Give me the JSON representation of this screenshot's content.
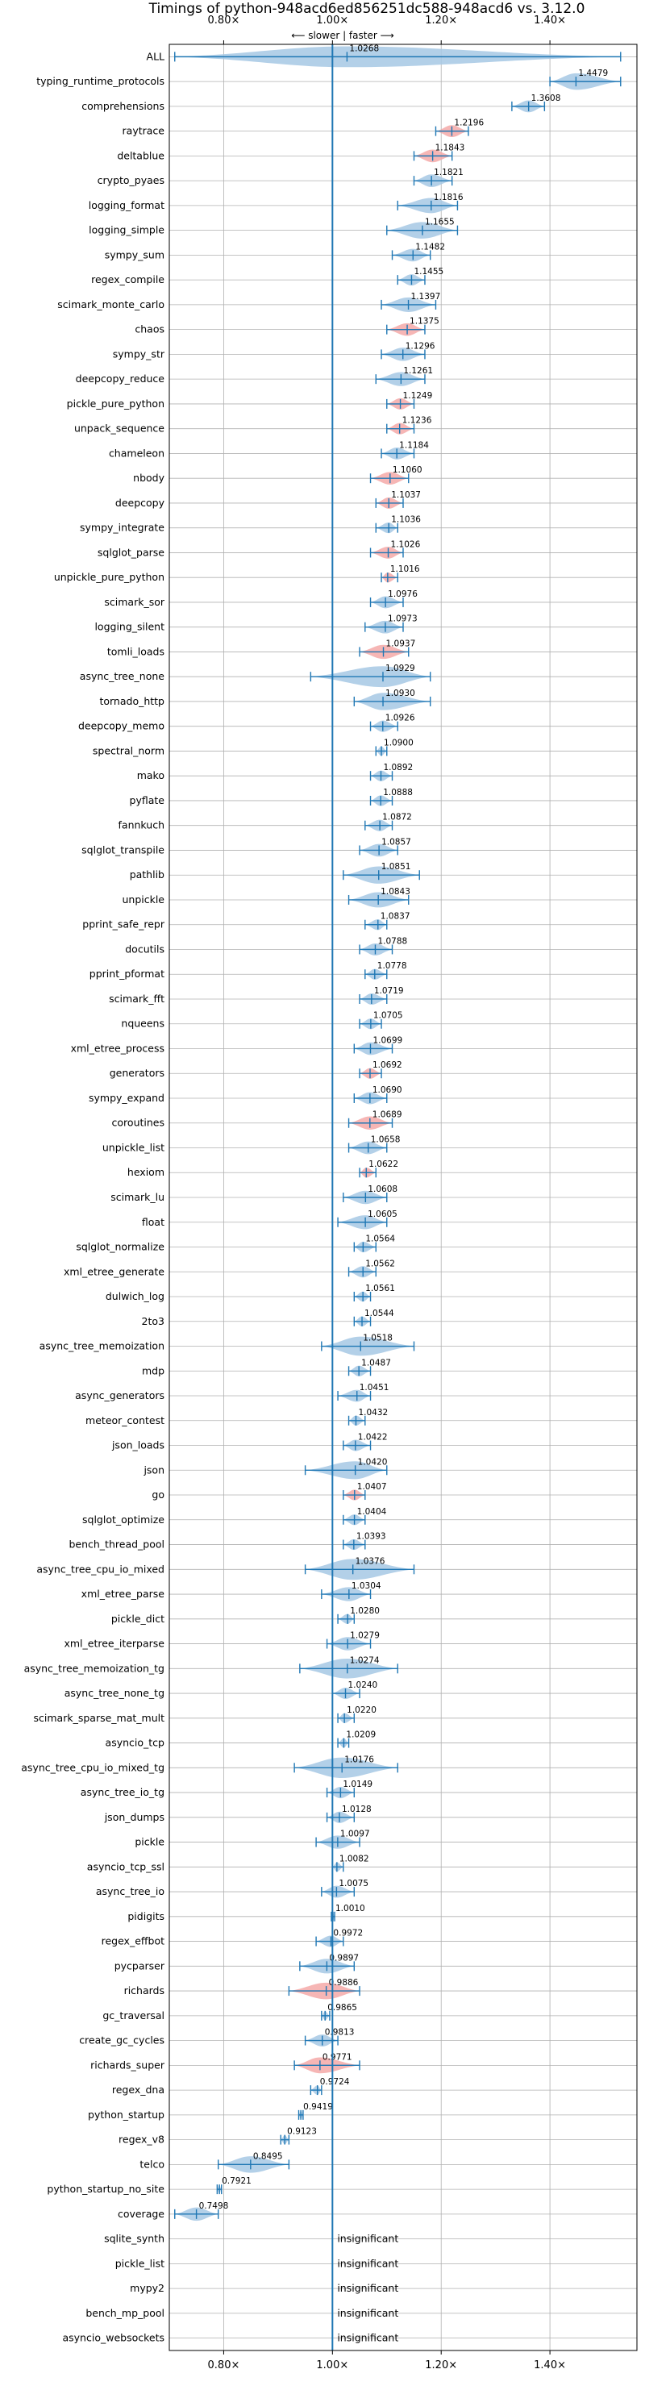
{
  "chart_data": {
    "type": "violin",
    "title": "Timings of python-948acd6ed856251dc588-948acd6 vs. 3.12.0",
    "direction_label": "⟵ slower | faster ⟶",
    "xlim": [
      0.7,
      1.56
    ],
    "xticks": [
      0.8,
      1.0,
      1.2,
      1.4
    ],
    "xtick_labels": [
      "0.80×",
      "1.00×",
      "1.20×",
      "1.40×"
    ],
    "reference_line": 1.0,
    "insignificant_label": "insignificant",
    "benchmarks": [
      {
        "name": "ALL",
        "value": 1.0268,
        "label": "1.0268",
        "min": 0.71,
        "max": 1.53,
        "highlight": false,
        "insignificant": false
      },
      {
        "name": "typing_runtime_protocols",
        "value": 1.4479,
        "label": "1.4479",
        "min": 1.4,
        "max": 1.53,
        "highlight": false,
        "insignificant": false
      },
      {
        "name": "comprehensions",
        "value": 1.3608,
        "label": "1.3608",
        "min": 1.33,
        "max": 1.39,
        "highlight": false,
        "insignificant": false
      },
      {
        "name": "raytrace",
        "value": 1.2196,
        "label": "1.2196",
        "min": 1.19,
        "max": 1.25,
        "highlight": true,
        "insignificant": false
      },
      {
        "name": "deltablue",
        "value": 1.1843,
        "label": "1.1843",
        "min": 1.15,
        "max": 1.22,
        "highlight": true,
        "insignificant": false
      },
      {
        "name": "crypto_pyaes",
        "value": 1.1821,
        "label": "1.1821",
        "min": 1.15,
        "max": 1.22,
        "highlight": false,
        "insignificant": false
      },
      {
        "name": "logging_format",
        "value": 1.1816,
        "label": "1.1816",
        "min": 1.12,
        "max": 1.23,
        "highlight": false,
        "insignificant": false
      },
      {
        "name": "logging_simple",
        "value": 1.1655,
        "label": "1.1655",
        "min": 1.1,
        "max": 1.23,
        "highlight": false,
        "insignificant": false
      },
      {
        "name": "sympy_sum",
        "value": 1.1482,
        "label": "1.1482",
        "min": 1.11,
        "max": 1.18,
        "highlight": false,
        "insignificant": false
      },
      {
        "name": "regex_compile",
        "value": 1.1455,
        "label": "1.1455",
        "min": 1.12,
        "max": 1.17,
        "highlight": false,
        "insignificant": false
      },
      {
        "name": "scimark_monte_carlo",
        "value": 1.1397,
        "label": "1.1397",
        "min": 1.09,
        "max": 1.19,
        "highlight": false,
        "insignificant": false
      },
      {
        "name": "chaos",
        "value": 1.1375,
        "label": "1.1375",
        "min": 1.1,
        "max": 1.17,
        "highlight": true,
        "insignificant": false
      },
      {
        "name": "sympy_str",
        "value": 1.1296,
        "label": "1.1296",
        "min": 1.09,
        "max": 1.17,
        "highlight": false,
        "insignificant": false
      },
      {
        "name": "deepcopy_reduce",
        "value": 1.1261,
        "label": "1.1261",
        "min": 1.08,
        "max": 1.17,
        "highlight": false,
        "insignificant": false
      },
      {
        "name": "pickle_pure_python",
        "value": 1.1249,
        "label": "1.1249",
        "min": 1.1,
        "max": 1.15,
        "highlight": true,
        "insignificant": false
      },
      {
        "name": "unpack_sequence",
        "value": 1.1236,
        "label": "1.1236",
        "min": 1.1,
        "max": 1.15,
        "highlight": true,
        "insignificant": false
      },
      {
        "name": "chameleon",
        "value": 1.1184,
        "label": "1.1184",
        "min": 1.09,
        "max": 1.15,
        "highlight": false,
        "insignificant": false
      },
      {
        "name": "nbody",
        "value": 1.106,
        "label": "1.1060",
        "min": 1.07,
        "max": 1.14,
        "highlight": true,
        "insignificant": false
      },
      {
        "name": "deepcopy",
        "value": 1.1037,
        "label": "1.1037",
        "min": 1.08,
        "max": 1.13,
        "highlight": true,
        "insignificant": false
      },
      {
        "name": "sympy_integrate",
        "value": 1.1036,
        "label": "1.1036",
        "min": 1.08,
        "max": 1.12,
        "highlight": false,
        "insignificant": false
      },
      {
        "name": "sqlglot_parse",
        "value": 1.1026,
        "label": "1.1026",
        "min": 1.07,
        "max": 1.13,
        "highlight": true,
        "insignificant": false
      },
      {
        "name": "unpickle_pure_python",
        "value": 1.1016,
        "label": "1.1016",
        "min": 1.09,
        "max": 1.12,
        "highlight": true,
        "insignificant": false
      },
      {
        "name": "scimark_sor",
        "value": 1.0976,
        "label": "1.0976",
        "min": 1.07,
        "max": 1.13,
        "highlight": false,
        "insignificant": false
      },
      {
        "name": "logging_silent",
        "value": 1.0973,
        "label": "1.0973",
        "min": 1.06,
        "max": 1.13,
        "highlight": false,
        "insignificant": false
      },
      {
        "name": "tomli_loads",
        "value": 1.0937,
        "label": "1.0937",
        "min": 1.05,
        "max": 1.14,
        "highlight": true,
        "insignificant": false
      },
      {
        "name": "async_tree_none",
        "value": 1.0929,
        "label": "1.0929",
        "min": 0.96,
        "max": 1.18,
        "highlight": false,
        "insignificant": false
      },
      {
        "name": "tornado_http",
        "value": 1.093,
        "label": "1.0930",
        "min": 1.04,
        "max": 1.18,
        "highlight": false,
        "insignificant": false
      },
      {
        "name": "deepcopy_memo",
        "value": 1.0926,
        "label": "1.0926",
        "min": 1.07,
        "max": 1.12,
        "highlight": false,
        "insignificant": false
      },
      {
        "name": "spectral_norm",
        "value": 1.09,
        "label": "1.0900",
        "min": 1.08,
        "max": 1.1,
        "highlight": false,
        "insignificant": false
      },
      {
        "name": "mako",
        "value": 1.0892,
        "label": "1.0892",
        "min": 1.07,
        "max": 1.11,
        "highlight": false,
        "insignificant": false
      },
      {
        "name": "pyflate",
        "value": 1.0888,
        "label": "1.0888",
        "min": 1.07,
        "max": 1.11,
        "highlight": false,
        "insignificant": false
      },
      {
        "name": "fannkuch",
        "value": 1.0872,
        "label": "1.0872",
        "min": 1.06,
        "max": 1.11,
        "highlight": false,
        "insignificant": false
      },
      {
        "name": "sqlglot_transpile",
        "value": 1.0857,
        "label": "1.0857",
        "min": 1.05,
        "max": 1.12,
        "highlight": false,
        "insignificant": false
      },
      {
        "name": "pathlib",
        "value": 1.0851,
        "label": "1.0851",
        "min": 1.02,
        "max": 1.16,
        "highlight": false,
        "insignificant": false
      },
      {
        "name": "unpickle",
        "value": 1.0843,
        "label": "1.0843",
        "min": 1.03,
        "max": 1.14,
        "highlight": false,
        "insignificant": false
      },
      {
        "name": "pprint_safe_repr",
        "value": 1.0837,
        "label": "1.0837",
        "min": 1.06,
        "max": 1.1,
        "highlight": false,
        "insignificant": false
      },
      {
        "name": "docutils",
        "value": 1.0788,
        "label": "1.0788",
        "min": 1.05,
        "max": 1.11,
        "highlight": false,
        "insignificant": false
      },
      {
        "name": "pprint_pformat",
        "value": 1.0778,
        "label": "1.0778",
        "min": 1.06,
        "max": 1.1,
        "highlight": false,
        "insignificant": false
      },
      {
        "name": "scimark_fft",
        "value": 1.0719,
        "label": "1.0719",
        "min": 1.05,
        "max": 1.1,
        "highlight": false,
        "insignificant": false
      },
      {
        "name": "nqueens",
        "value": 1.0705,
        "label": "1.0705",
        "min": 1.05,
        "max": 1.09,
        "highlight": false,
        "insignificant": false
      },
      {
        "name": "xml_etree_process",
        "value": 1.0699,
        "label": "1.0699",
        "min": 1.04,
        "max": 1.11,
        "highlight": false,
        "insignificant": false
      },
      {
        "name": "generators",
        "value": 1.0692,
        "label": "1.0692",
        "min": 1.05,
        "max": 1.09,
        "highlight": true,
        "insignificant": false
      },
      {
        "name": "sympy_expand",
        "value": 1.069,
        "label": "1.0690",
        "min": 1.04,
        "max": 1.1,
        "highlight": false,
        "insignificant": false
      },
      {
        "name": "coroutines",
        "value": 1.0689,
        "label": "1.0689",
        "min": 1.03,
        "max": 1.11,
        "highlight": true,
        "insignificant": false
      },
      {
        "name": "unpickle_list",
        "value": 1.0658,
        "label": "1.0658",
        "min": 1.03,
        "max": 1.1,
        "highlight": false,
        "insignificant": false
      },
      {
        "name": "hexiom",
        "value": 1.0622,
        "label": "1.0622",
        "min": 1.05,
        "max": 1.08,
        "highlight": true,
        "insignificant": false
      },
      {
        "name": "scimark_lu",
        "value": 1.0608,
        "label": "1.0608",
        "min": 1.02,
        "max": 1.1,
        "highlight": false,
        "insignificant": false
      },
      {
        "name": "float",
        "value": 1.0605,
        "label": "1.0605",
        "min": 1.01,
        "max": 1.1,
        "highlight": false,
        "insignificant": false
      },
      {
        "name": "sqlglot_normalize",
        "value": 1.0564,
        "label": "1.0564",
        "min": 1.04,
        "max": 1.08,
        "highlight": false,
        "insignificant": false
      },
      {
        "name": "xml_etree_generate",
        "value": 1.0562,
        "label": "1.0562",
        "min": 1.03,
        "max": 1.08,
        "highlight": false,
        "insignificant": false
      },
      {
        "name": "dulwich_log",
        "value": 1.0561,
        "label": "1.0561",
        "min": 1.04,
        "max": 1.07,
        "highlight": false,
        "insignificant": false
      },
      {
        "name": "2to3",
        "value": 1.0544,
        "label": "1.0544",
        "min": 1.04,
        "max": 1.07,
        "highlight": false,
        "insignificant": false
      },
      {
        "name": "async_tree_memoization",
        "value": 1.0518,
        "label": "1.0518",
        "min": 0.98,
        "max": 1.15,
        "highlight": false,
        "insignificant": false
      },
      {
        "name": "mdp",
        "value": 1.0487,
        "label": "1.0487",
        "min": 1.03,
        "max": 1.07,
        "highlight": false,
        "insignificant": false
      },
      {
        "name": "async_generators",
        "value": 1.0451,
        "label": "1.0451",
        "min": 1.01,
        "max": 1.07,
        "highlight": false,
        "insignificant": false
      },
      {
        "name": "meteor_contest",
        "value": 1.0432,
        "label": "1.0432",
        "min": 1.03,
        "max": 1.06,
        "highlight": false,
        "insignificant": false
      },
      {
        "name": "json_loads",
        "value": 1.0422,
        "label": "1.0422",
        "min": 1.02,
        "max": 1.07,
        "highlight": false,
        "insignificant": false
      },
      {
        "name": "json",
        "value": 1.042,
        "label": "1.0420",
        "min": 0.95,
        "max": 1.1,
        "highlight": false,
        "insignificant": false
      },
      {
        "name": "go",
        "value": 1.0407,
        "label": "1.0407",
        "min": 1.02,
        "max": 1.06,
        "highlight": true,
        "insignificant": false
      },
      {
        "name": "sqlglot_optimize",
        "value": 1.0404,
        "label": "1.0404",
        "min": 1.02,
        "max": 1.06,
        "highlight": false,
        "insignificant": false
      },
      {
        "name": "bench_thread_pool",
        "value": 1.0393,
        "label": "1.0393",
        "min": 1.02,
        "max": 1.06,
        "highlight": false,
        "insignificant": false
      },
      {
        "name": "async_tree_cpu_io_mixed",
        "value": 1.0376,
        "label": "1.0376",
        "min": 0.95,
        "max": 1.15,
        "highlight": false,
        "insignificant": false
      },
      {
        "name": "xml_etree_parse",
        "value": 1.0304,
        "label": "1.0304",
        "min": 0.98,
        "max": 1.07,
        "highlight": false,
        "insignificant": false
      },
      {
        "name": "pickle_dict",
        "value": 1.028,
        "label": "1.0280",
        "min": 1.01,
        "max": 1.04,
        "highlight": false,
        "insignificant": false
      },
      {
        "name": "xml_etree_iterparse",
        "value": 1.0279,
        "label": "1.0279",
        "min": 0.99,
        "max": 1.07,
        "highlight": false,
        "insignificant": false
      },
      {
        "name": "async_tree_memoization_tg",
        "value": 1.0274,
        "label": "1.0274",
        "min": 0.94,
        "max": 1.12,
        "highlight": false,
        "insignificant": false
      },
      {
        "name": "async_tree_none_tg",
        "value": 1.024,
        "label": "1.0240",
        "min": 1.0,
        "max": 1.05,
        "highlight": false,
        "insignificant": false
      },
      {
        "name": "scimark_sparse_mat_mult",
        "value": 1.022,
        "label": "1.0220",
        "min": 1.01,
        "max": 1.04,
        "highlight": false,
        "insignificant": false
      },
      {
        "name": "asyncio_tcp",
        "value": 1.0209,
        "label": "1.0209",
        "min": 1.01,
        "max": 1.03,
        "highlight": false,
        "insignificant": false
      },
      {
        "name": "async_tree_cpu_io_mixed_tg",
        "value": 1.0176,
        "label": "1.0176",
        "min": 0.93,
        "max": 1.12,
        "highlight": false,
        "insignificant": false
      },
      {
        "name": "async_tree_io_tg",
        "value": 1.0149,
        "label": "1.0149",
        "min": 0.99,
        "max": 1.04,
        "highlight": false,
        "insignificant": false
      },
      {
        "name": "json_dumps",
        "value": 1.0128,
        "label": "1.0128",
        "min": 0.99,
        "max": 1.04,
        "highlight": false,
        "insignificant": false
      },
      {
        "name": "pickle",
        "value": 1.0097,
        "label": "1.0097",
        "min": 0.97,
        "max": 1.05,
        "highlight": false,
        "insignificant": false
      },
      {
        "name": "asyncio_tcp_ssl",
        "value": 1.0082,
        "label": "1.0082",
        "min": 1.0,
        "max": 1.02,
        "highlight": false,
        "insignificant": false
      },
      {
        "name": "async_tree_io",
        "value": 1.0075,
        "label": "1.0075",
        "min": 0.98,
        "max": 1.04,
        "highlight": false,
        "insignificant": false
      },
      {
        "name": "pidigits",
        "value": 1.001,
        "label": "1.0010",
        "min": 0.998,
        "max": 1.004,
        "highlight": false,
        "insignificant": false
      },
      {
        "name": "regex_effbot",
        "value": 0.9972,
        "label": "0.9972",
        "min": 0.97,
        "max": 1.02,
        "highlight": false,
        "insignificant": false
      },
      {
        "name": "pycparser",
        "value": 0.9897,
        "label": "0.9897",
        "min": 0.94,
        "max": 1.04,
        "highlight": false,
        "insignificant": false
      },
      {
        "name": "richards",
        "value": 0.9886,
        "label": "0.9886",
        "min": 0.92,
        "max": 1.05,
        "highlight": true,
        "insignificant": false
      },
      {
        "name": "gc_traversal",
        "value": 0.9865,
        "label": "0.9865",
        "min": 0.98,
        "max": 0.995,
        "highlight": false,
        "insignificant": false
      },
      {
        "name": "create_gc_cycles",
        "value": 0.9813,
        "label": "0.9813",
        "min": 0.95,
        "max": 1.01,
        "highlight": false,
        "insignificant": false
      },
      {
        "name": "richards_super",
        "value": 0.9771,
        "label": "0.9771",
        "min": 0.93,
        "max": 1.05,
        "highlight": true,
        "insignificant": false
      },
      {
        "name": "regex_dna",
        "value": 0.9724,
        "label": "0.9724",
        "min": 0.96,
        "max": 0.98,
        "highlight": false,
        "insignificant": false
      },
      {
        "name": "python_startup",
        "value": 0.9419,
        "label": "0.9419",
        "min": 0.938,
        "max": 0.946,
        "highlight": false,
        "insignificant": false
      },
      {
        "name": "regex_v8",
        "value": 0.9123,
        "label": "0.9123",
        "min": 0.905,
        "max": 0.92,
        "highlight": false,
        "insignificant": false
      },
      {
        "name": "telco",
        "value": 0.8495,
        "label": "0.8495",
        "min": 0.79,
        "max": 0.92,
        "highlight": false,
        "insignificant": false
      },
      {
        "name": "python_startup_no_site",
        "value": 0.7921,
        "label": "0.7921",
        "min": 0.788,
        "max": 0.796,
        "highlight": false,
        "insignificant": false
      },
      {
        "name": "coverage",
        "value": 0.7498,
        "label": "0.7498",
        "min": 0.71,
        "max": 0.79,
        "highlight": false,
        "insignificant": false
      },
      {
        "name": "sqlite_synth",
        "insignificant": true
      },
      {
        "name": "pickle_list",
        "insignificant": true
      },
      {
        "name": "mypy2",
        "insignificant": true
      },
      {
        "name": "bench_mp_pool",
        "insignificant": true
      },
      {
        "name": "asyncio_websockets",
        "insignificant": true
      }
    ],
    "colors": {
      "violin": "#a6c8e4",
      "highlight": "#f4a9a8",
      "line": "#1f77b4",
      "grid": "#b0b0b0",
      "text": "#000000"
    }
  }
}
